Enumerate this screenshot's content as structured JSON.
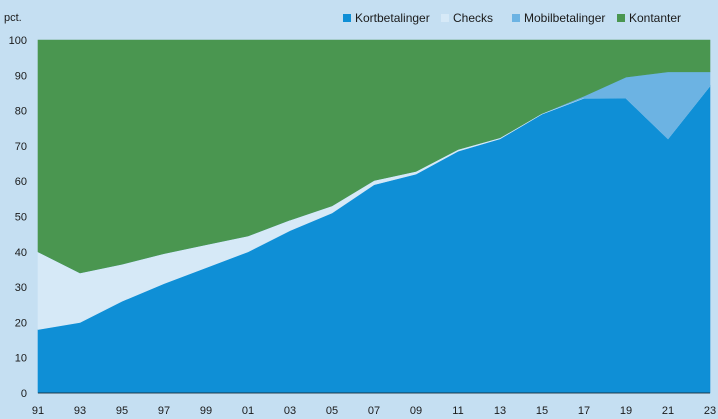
{
  "chart_data": {
    "type": "area",
    "stacked": true,
    "ylabel": "pct.",
    "ylim": [
      0,
      100
    ],
    "yticks": [
      0,
      10,
      20,
      30,
      40,
      50,
      60,
      70,
      80,
      90,
      100
    ],
    "x": [
      1991,
      1993,
      1995,
      1997,
      1999,
      2001,
      2003,
      2005,
      2007,
      2009,
      2011,
      2013,
      2015,
      2017,
      2019,
      2021,
      2023
    ],
    "xtick_labels": [
      "91",
      "93",
      "95",
      "97",
      "99",
      "01",
      "03",
      "05",
      "07",
      "09",
      "11",
      "13",
      "15",
      "17",
      "19",
      "21",
      "23"
    ],
    "grid": false,
    "legend_position": "top-right",
    "series": [
      {
        "name": "Kortbetalinger",
        "color": "#0f8fd6",
        "values": [
          18,
          20,
          26,
          31,
          35.5,
          40,
          46,
          51,
          59,
          62,
          68.5,
          72,
          79,
          83.5,
          83.5,
          72,
          87
        ]
      },
      {
        "name": "Checks",
        "color": "#d6e9f7",
        "values": [
          22,
          14,
          10.5,
          8.5,
          6.5,
          4.5,
          3,
          2,
          1.2,
          0.8,
          0.5,
          0.3,
          0.2,
          0.1,
          0,
          0,
          0
        ]
      },
      {
        "name": "Mobilbetalinger",
        "color": "#6cb3e3",
        "values": [
          0,
          0,
          0,
          0,
          0,
          0,
          0,
          0,
          0,
          0,
          0,
          0,
          0,
          0.5,
          6,
          19,
          4
        ]
      },
      {
        "name": "Kontanter",
        "color": "#4a9650",
        "values": [
          60,
          66,
          63.5,
          60.5,
          58,
          55.5,
          51,
          47,
          39.8,
          37.2,
          31,
          27.7,
          20.8,
          15.9,
          10.5,
          9,
          9
        ]
      }
    ]
  }
}
